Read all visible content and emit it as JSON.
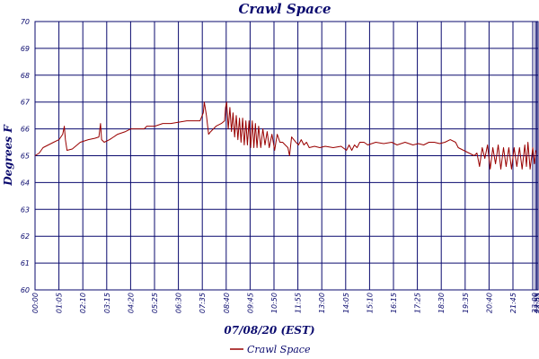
{
  "chart_data": {
    "type": "line",
    "title": "Crawl Space",
    "xlabel": "07/08/20 (EST)",
    "ylabel": "Degrees F",
    "ylim": [
      60,
      70
    ],
    "yticks": [
      "60",
      "61",
      "62",
      "63",
      "64",
      "65",
      "66",
      "67",
      "68",
      "69",
      "70"
    ],
    "xticks": [
      "00:00",
      "01:05",
      "02:10",
      "03:15",
      "04:20",
      "05:25",
      "06:30",
      "07:35",
      "08:40",
      "09:45",
      "10:50",
      "11:55",
      "13:00",
      "14:05",
      "15:10",
      "16:15",
      "17:25",
      "18:30",
      "19:35",
      "20:40",
      "21:45",
      "22:55",
      "23:00",
      "23:05"
    ],
    "grid": true,
    "legend": "bottom-center",
    "series": [
      {
        "name": "Crawl Space",
        "color": "#990000",
        "points": [
          [
            0,
            65.0
          ],
          [
            8,
            65.1
          ],
          [
            15,
            65.3
          ],
          [
            25,
            65.4
          ],
          [
            35,
            65.5
          ],
          [
            45,
            65.6
          ],
          [
            52,
            65.8
          ],
          [
            55,
            66.1
          ],
          [
            57,
            65.6
          ],
          [
            60,
            65.2
          ],
          [
            70,
            65.25
          ],
          [
            85,
            65.5
          ],
          [
            100,
            65.6
          ],
          [
            112,
            65.65
          ],
          [
            120,
            65.7
          ],
          [
            123,
            66.2
          ],
          [
            125,
            65.6
          ],
          [
            130,
            65.5
          ],
          [
            140,
            65.6
          ],
          [
            155,
            65.8
          ],
          [
            170,
            65.9
          ],
          [
            180,
            66.0
          ],
          [
            195,
            66.0
          ],
          [
            205,
            66.0
          ],
          [
            210,
            66.1
          ],
          [
            225,
            66.1
          ],
          [
            240,
            66.2
          ],
          [
            255,
            66.2
          ],
          [
            270,
            66.25
          ],
          [
            285,
            66.3
          ],
          [
            300,
            66.3
          ],
          [
            310,
            66.3
          ],
          [
            316,
            66.6
          ],
          [
            318,
            67.0
          ],
          [
            322,
            66.5
          ],
          [
            326,
            65.8
          ],
          [
            330,
            65.9
          ],
          [
            340,
            66.1
          ],
          [
            350,
            66.2
          ],
          [
            356,
            66.3
          ],
          [
            358,
            66.8
          ],
          [
            360,
            67.0
          ],
          [
            363,
            66.0
          ],
          [
            366,
            66.8
          ],
          [
            369,
            65.9
          ],
          [
            372,
            66.6
          ],
          [
            375,
            65.7
          ],
          [
            378,
            66.5
          ],
          [
            381,
            65.6
          ],
          [
            384,
            66.4
          ],
          [
            387,
            65.5
          ],
          [
            390,
            66.4
          ],
          [
            393,
            65.4
          ],
          [
            396,
            66.3
          ],
          [
            399,
            65.4
          ],
          [
            402,
            66.3
          ],
          [
            405,
            65.3
          ],
          [
            408,
            66.3
          ],
          [
            411,
            65.3
          ],
          [
            414,
            66.2
          ],
          [
            417,
            65.3
          ],
          [
            420,
            66.1
          ],
          [
            424,
            65.3
          ],
          [
            428,
            66.0
          ],
          [
            432,
            65.4
          ],
          [
            436,
            65.9
          ],
          [
            440,
            65.3
          ],
          [
            445,
            65.8
          ],
          [
            450,
            65.2
          ],
          [
            455,
            65.8
          ],
          [
            460,
            65.5
          ],
          [
            465,
            65.5
          ],
          [
            470,
            65.4
          ],
          [
            475,
            65.3
          ],
          [
            478,
            65.0
          ],
          [
            482,
            65.7
          ],
          [
            486,
            65.6
          ],
          [
            490,
            65.5
          ],
          [
            495,
            65.4
          ],
          [
            500,
            65.6
          ],
          [
            505,
            65.4
          ],
          [
            510,
            65.5
          ],
          [
            515,
            65.3
          ],
          [
            525,
            65.35
          ],
          [
            535,
            65.3
          ],
          [
            545,
            65.35
          ],
          [
            560,
            65.3
          ],
          [
            575,
            65.35
          ],
          [
            585,
            65.2
          ],
          [
            590,
            65.4
          ],
          [
            595,
            65.2
          ],
          [
            600,
            65.4
          ],
          [
            605,
            65.3
          ],
          [
            610,
            65.5
          ],
          [
            618,
            65.5
          ],
          [
            625,
            65.4
          ],
          [
            640,
            65.5
          ],
          [
            655,
            65.45
          ],
          [
            670,
            65.5
          ],
          [
            680,
            65.4
          ],
          [
            695,
            65.5
          ],
          [
            710,
            65.4
          ],
          [
            720,
            65.45
          ],
          [
            730,
            65.4
          ],
          [
            740,
            65.5
          ],
          [
            750,
            65.5
          ],
          [
            760,
            65.45
          ],
          [
            770,
            65.5
          ],
          [
            780,
            65.6
          ],
          [
            790,
            65.5
          ],
          [
            795,
            65.3
          ],
          [
            805,
            65.2
          ],
          [
            815,
            65.1
          ],
          [
            825,
            65.0
          ],
          [
            830,
            65.1
          ],
          [
            835,
            64.6
          ],
          [
            840,
            65.3
          ],
          [
            845,
            64.9
          ],
          [
            850,
            65.4
          ],
          [
            855,
            64.5
          ],
          [
            860,
            65.3
          ],
          [
            865,
            64.7
          ],
          [
            870,
            65.4
          ],
          [
            875,
            64.5
          ],
          [
            880,
            65.3
          ],
          [
            885,
            64.6
          ],
          [
            890,
            65.3
          ],
          [
            895,
            64.5
          ],
          [
            900,
            65.3
          ],
          [
            905,
            64.6
          ],
          [
            910,
            65.3
          ],
          [
            915,
            64.5
          ],
          [
            920,
            65.4
          ],
          [
            923,
            64.6
          ],
          [
            926,
            65.5
          ],
          [
            930,
            64.5
          ],
          [
            935,
            65.3
          ],
          [
            938,
            64.7
          ],
          [
            941,
            65.2
          ]
        ]
      }
    ]
  }
}
